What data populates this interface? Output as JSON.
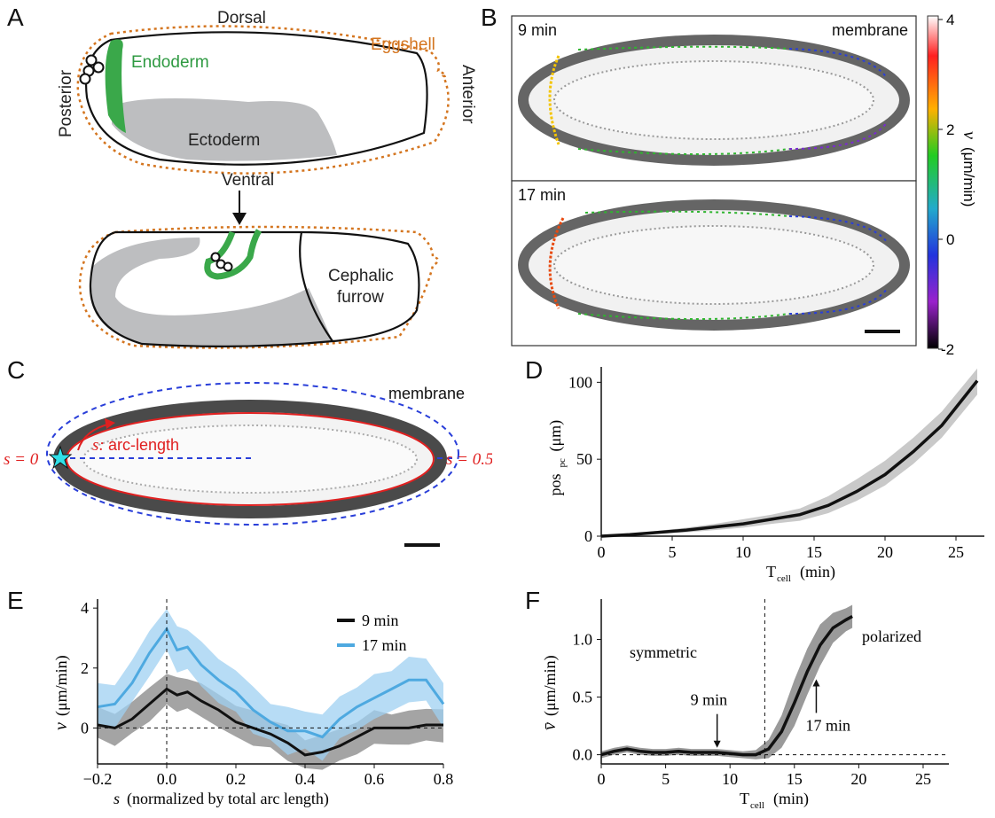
{
  "panels": {
    "A": {
      "letter": "A",
      "top_labels": {
        "dorsal": "Dorsal",
        "eggshell": "Eggshell",
        "posterior": "Posterior",
        "anterior": "Anterior",
        "endoderm": "Endoderm",
        "ectoderm": "Ectoderm",
        "ventral": "Ventral"
      },
      "bottom_labels": {
        "cephalic_line1": "Cephalic",
        "cephalic_line2": "furrow"
      }
    },
    "B": {
      "letter": "B",
      "top_label": "9 min",
      "top_right": "membrane",
      "bottom_label": "17 min",
      "colorbar_ticks": [
        "4",
        "2",
        "0",
        "-2"
      ],
      "colorbar_label_sym": "v",
      "colorbar_label_units": "(μm/min)"
    },
    "C": {
      "letter": "C",
      "membrane": "membrane",
      "s0": "s = 0",
      "s05": "s = 0.5",
      "arc_s": "s:",
      "arc_label": "arc-length"
    },
    "D": {
      "letter": "D"
    },
    "E": {
      "letter": "E"
    },
    "F": {
      "letter": "F"
    }
  },
  "chart_data": [
    {
      "panel": "D",
      "type": "line",
      "xlabel_main": "T",
      "xlabel_sub": "cell",
      "xlabel_units": "(min)",
      "ylabel_main": "pos",
      "ylabel_sub": "pc",
      "ylabel_units": "(μm)",
      "xlim": [
        0,
        27
      ],
      "ylim": [
        0,
        110
      ],
      "xticks": [
        0,
        5,
        10,
        15,
        20,
        25
      ],
      "yticks": [
        0,
        50,
        100
      ],
      "series": [
        {
          "x": [
            0,
            2,
            4,
            6,
            8,
            10,
            12,
            14,
            16,
            18,
            20,
            22,
            24,
            26.5
          ],
          "y": [
            0,
            1,
            2.5,
            4,
            6,
            8,
            11,
            14,
            20,
            29,
            40,
            55,
            72,
            101
          ],
          "lower": [
            0,
            0.5,
            1.5,
            2.5,
            4,
            5.5,
            8,
            10,
            15,
            23,
            33,
            47,
            64,
            92
          ],
          "upper": [
            0,
            1.5,
            3.5,
            5.5,
            8,
            11,
            14,
            18,
            26,
            37,
            49,
            64,
            81,
            109
          ]
        }
      ]
    },
    {
      "panel": "E",
      "type": "line",
      "xlabel_sym": "s",
      "xlabel_rest": "(normalized by total arc length)",
      "ylabel_sym": "v",
      "ylabel_units": "(μm/min)",
      "xlim": [
        -0.2,
        0.8
      ],
      "ylim": [
        -1.2,
        4.3
      ],
      "xticks": [
        "−0.2",
        "0.0",
        "0.2",
        "0.4",
        "0.6",
        "0.8"
      ],
      "xtick_values": [
        -0.2,
        0,
        0.2,
        0.4,
        0.6,
        0.8
      ],
      "yticks": [
        0,
        2,
        4
      ],
      "legend_placement": "top-right",
      "series": [
        {
          "name": "9 min",
          "color": "#111111",
          "band_color": "#9a9a9a",
          "x": [
            -0.2,
            -0.15,
            -0.1,
            -0.05,
            0,
            0.03,
            0.06,
            0.1,
            0.15,
            0.2,
            0.25,
            0.3,
            0.35,
            0.4,
            0.45,
            0.5,
            0.55,
            0.6,
            0.65,
            0.7,
            0.75,
            0.8
          ],
          "y": [
            0.1,
            0.0,
            0.3,
            0.8,
            1.3,
            1.1,
            1.2,
            0.9,
            0.6,
            0.2,
            0.0,
            -0.2,
            -0.5,
            -0.9,
            -0.8,
            -0.6,
            -0.3,
            0.0,
            0.0,
            0.0,
            0.1,
            0.1
          ],
          "spread": 0.6
        },
        {
          "name": "17 min",
          "color": "#4ea9e0",
          "band_color": "#9fd0f2",
          "x": [
            -0.2,
            -0.15,
            -0.1,
            -0.05,
            0,
            0.03,
            0.06,
            0.1,
            0.15,
            0.2,
            0.25,
            0.3,
            0.35,
            0.4,
            0.45,
            0.5,
            0.55,
            0.6,
            0.65,
            0.7,
            0.75,
            0.8
          ],
          "y": [
            0.7,
            0.8,
            1.5,
            2.5,
            3.3,
            2.6,
            2.7,
            2.1,
            1.6,
            1.2,
            0.6,
            0.2,
            -0.1,
            -0.1,
            -0.3,
            0.3,
            0.7,
            1.0,
            1.3,
            1.6,
            1.6,
            0.8
          ],
          "spread": 0.8
        }
      ]
    },
    {
      "panel": "F",
      "type": "line",
      "xlabel_main": "T",
      "xlabel_sub": "cell",
      "xlabel_units": "(min)",
      "ylabel_sym": "v̄",
      "ylabel_units": "(μm/min)",
      "xlim": [
        0,
        27
      ],
      "ylim": [
        -0.08,
        1.35
      ],
      "xticks": [
        0,
        5,
        10,
        15,
        20,
        25
      ],
      "yticks": [
        "0.0",
        "0.5",
        "1.0"
      ],
      "ytick_values": [
        0,
        0.5,
        1.0
      ],
      "vline_x": 12.7,
      "region_labels": {
        "left": "symmetric",
        "right": "polarized"
      },
      "annotations": [
        {
          "text": "9 min",
          "x": 9,
          "y": 0.03
        },
        {
          "text": "17 min",
          "x": 16.7,
          "y": 0.67
        }
      ],
      "series": [
        {
          "x": [
            0,
            1,
            2,
            3,
            4,
            5,
            6,
            7,
            8,
            9,
            10,
            11,
            12,
            13,
            14,
            15,
            16,
            17,
            18,
            19,
            19.5
          ],
          "y": [
            0.0,
            0.03,
            0.05,
            0.03,
            0.02,
            0.02,
            0.03,
            0.02,
            0.02,
            0.02,
            0.01,
            0.0,
            0.0,
            0.05,
            0.2,
            0.45,
            0.72,
            0.95,
            1.1,
            1.17,
            1.2
          ],
          "spread": [
            0.03,
            0.03,
            0.03,
            0.03,
            0.03,
            0.03,
            0.03,
            0.03,
            0.03,
            0.03,
            0.03,
            0.03,
            0.04,
            0.08,
            0.14,
            0.2,
            0.2,
            0.18,
            0.13,
            0.1,
            0.1
          ]
        }
      ]
    }
  ]
}
